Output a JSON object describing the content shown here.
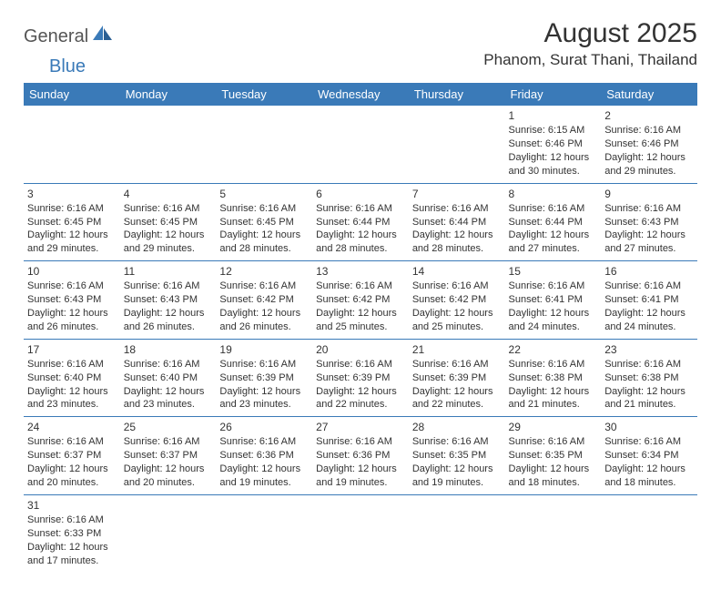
{
  "logo": {
    "text1": "General",
    "text2": "Blue"
  },
  "title": "August 2025",
  "location": "Phanom, Surat Thani, Thailand",
  "colors": {
    "header_bg": "#3a7ab8",
    "header_fg": "#ffffff",
    "text": "#333333"
  },
  "weekdays": [
    "Sunday",
    "Monday",
    "Tuesday",
    "Wednesday",
    "Thursday",
    "Friday",
    "Saturday"
  ],
  "weeks": [
    [
      null,
      null,
      null,
      null,
      null,
      {
        "n": "1",
        "sr": "Sunrise: 6:15 AM",
        "ss": "Sunset: 6:46 PM",
        "dl": "Daylight: 12 hours and 30 minutes."
      },
      {
        "n": "2",
        "sr": "Sunrise: 6:16 AM",
        "ss": "Sunset: 6:46 PM",
        "dl": "Daylight: 12 hours and 29 minutes."
      }
    ],
    [
      {
        "n": "3",
        "sr": "Sunrise: 6:16 AM",
        "ss": "Sunset: 6:45 PM",
        "dl": "Daylight: 12 hours and 29 minutes."
      },
      {
        "n": "4",
        "sr": "Sunrise: 6:16 AM",
        "ss": "Sunset: 6:45 PM",
        "dl": "Daylight: 12 hours and 29 minutes."
      },
      {
        "n": "5",
        "sr": "Sunrise: 6:16 AM",
        "ss": "Sunset: 6:45 PM",
        "dl": "Daylight: 12 hours and 28 minutes."
      },
      {
        "n": "6",
        "sr": "Sunrise: 6:16 AM",
        "ss": "Sunset: 6:44 PM",
        "dl": "Daylight: 12 hours and 28 minutes."
      },
      {
        "n": "7",
        "sr": "Sunrise: 6:16 AM",
        "ss": "Sunset: 6:44 PM",
        "dl": "Daylight: 12 hours and 28 minutes."
      },
      {
        "n": "8",
        "sr": "Sunrise: 6:16 AM",
        "ss": "Sunset: 6:44 PM",
        "dl": "Daylight: 12 hours and 27 minutes."
      },
      {
        "n": "9",
        "sr": "Sunrise: 6:16 AM",
        "ss": "Sunset: 6:43 PM",
        "dl": "Daylight: 12 hours and 27 minutes."
      }
    ],
    [
      {
        "n": "10",
        "sr": "Sunrise: 6:16 AM",
        "ss": "Sunset: 6:43 PM",
        "dl": "Daylight: 12 hours and 26 minutes."
      },
      {
        "n": "11",
        "sr": "Sunrise: 6:16 AM",
        "ss": "Sunset: 6:43 PM",
        "dl": "Daylight: 12 hours and 26 minutes."
      },
      {
        "n": "12",
        "sr": "Sunrise: 6:16 AM",
        "ss": "Sunset: 6:42 PM",
        "dl": "Daylight: 12 hours and 26 minutes."
      },
      {
        "n": "13",
        "sr": "Sunrise: 6:16 AM",
        "ss": "Sunset: 6:42 PM",
        "dl": "Daylight: 12 hours and 25 minutes."
      },
      {
        "n": "14",
        "sr": "Sunrise: 6:16 AM",
        "ss": "Sunset: 6:42 PM",
        "dl": "Daylight: 12 hours and 25 minutes."
      },
      {
        "n": "15",
        "sr": "Sunrise: 6:16 AM",
        "ss": "Sunset: 6:41 PM",
        "dl": "Daylight: 12 hours and 24 minutes."
      },
      {
        "n": "16",
        "sr": "Sunrise: 6:16 AM",
        "ss": "Sunset: 6:41 PM",
        "dl": "Daylight: 12 hours and 24 minutes."
      }
    ],
    [
      {
        "n": "17",
        "sr": "Sunrise: 6:16 AM",
        "ss": "Sunset: 6:40 PM",
        "dl": "Daylight: 12 hours and 23 minutes."
      },
      {
        "n": "18",
        "sr": "Sunrise: 6:16 AM",
        "ss": "Sunset: 6:40 PM",
        "dl": "Daylight: 12 hours and 23 minutes."
      },
      {
        "n": "19",
        "sr": "Sunrise: 6:16 AM",
        "ss": "Sunset: 6:39 PM",
        "dl": "Daylight: 12 hours and 23 minutes."
      },
      {
        "n": "20",
        "sr": "Sunrise: 6:16 AM",
        "ss": "Sunset: 6:39 PM",
        "dl": "Daylight: 12 hours and 22 minutes."
      },
      {
        "n": "21",
        "sr": "Sunrise: 6:16 AM",
        "ss": "Sunset: 6:39 PM",
        "dl": "Daylight: 12 hours and 22 minutes."
      },
      {
        "n": "22",
        "sr": "Sunrise: 6:16 AM",
        "ss": "Sunset: 6:38 PM",
        "dl": "Daylight: 12 hours and 21 minutes."
      },
      {
        "n": "23",
        "sr": "Sunrise: 6:16 AM",
        "ss": "Sunset: 6:38 PM",
        "dl": "Daylight: 12 hours and 21 minutes."
      }
    ],
    [
      {
        "n": "24",
        "sr": "Sunrise: 6:16 AM",
        "ss": "Sunset: 6:37 PM",
        "dl": "Daylight: 12 hours and 20 minutes."
      },
      {
        "n": "25",
        "sr": "Sunrise: 6:16 AM",
        "ss": "Sunset: 6:37 PM",
        "dl": "Daylight: 12 hours and 20 minutes."
      },
      {
        "n": "26",
        "sr": "Sunrise: 6:16 AM",
        "ss": "Sunset: 6:36 PM",
        "dl": "Daylight: 12 hours and 19 minutes."
      },
      {
        "n": "27",
        "sr": "Sunrise: 6:16 AM",
        "ss": "Sunset: 6:36 PM",
        "dl": "Daylight: 12 hours and 19 minutes."
      },
      {
        "n": "28",
        "sr": "Sunrise: 6:16 AM",
        "ss": "Sunset: 6:35 PM",
        "dl": "Daylight: 12 hours and 19 minutes."
      },
      {
        "n": "29",
        "sr": "Sunrise: 6:16 AM",
        "ss": "Sunset: 6:35 PM",
        "dl": "Daylight: 12 hours and 18 minutes."
      },
      {
        "n": "30",
        "sr": "Sunrise: 6:16 AM",
        "ss": "Sunset: 6:34 PM",
        "dl": "Daylight: 12 hours and 18 minutes."
      }
    ],
    [
      {
        "n": "31",
        "sr": "Sunrise: 6:16 AM",
        "ss": "Sunset: 6:33 PM",
        "dl": "Daylight: 12 hours and 17 minutes."
      },
      null,
      null,
      null,
      null,
      null,
      null
    ]
  ]
}
